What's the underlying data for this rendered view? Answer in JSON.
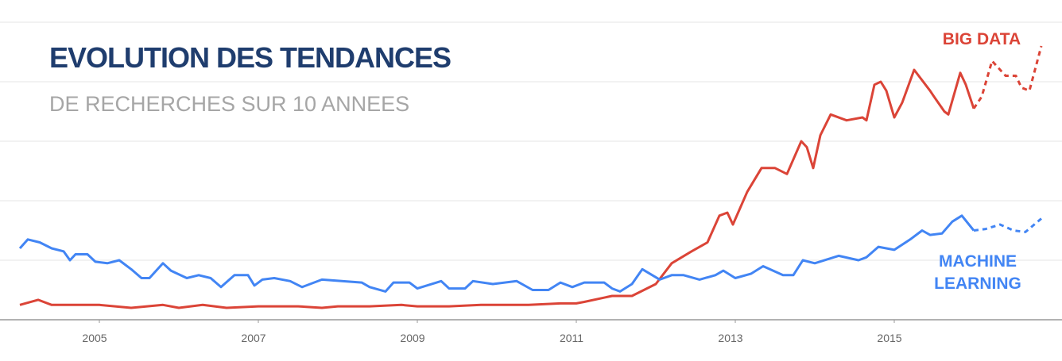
{
  "chart_data": {
    "type": "line",
    "title": "EVOLUTION DES TENDANCES",
    "subtitle": "DE RECHERCHES SUR 10 ANNEES",
    "xlim": [
      2004,
      2016.85
    ],
    "xticks": [
      2005,
      2007,
      2009,
      2011,
      2013,
      2015
    ],
    "ylim": [
      0,
      100
    ],
    "yticks": [
      0,
      20,
      40,
      60,
      80,
      100
    ],
    "grid": true,
    "show_ytick_labels": false,
    "dashed_from": 2016,
    "series": [
      {
        "name": "BIG DATA",
        "color": "#db4437",
        "x": [
          2004,
          2004.23,
          2004.4,
          2004.8,
          2005,
          2005.4,
          2005.8,
          2006,
          2006.3,
          2006.6,
          2007,
          2007.5,
          2007.8,
          2008,
          2008.4,
          2008.8,
          2009,
          2009.4,
          2009.8,
          2010,
          2010.4,
          2010.8,
          2011,
          2011.1,
          2011.45,
          2011.7,
          2012,
          2012.2,
          2012.45,
          2012.65,
          2012.8,
          2012.9,
          2012.97,
          2013.15,
          2013.33,
          2013.5,
          2013.65,
          2013.83,
          2013.9,
          2013.98,
          2014.07,
          2014.2,
          2014.4,
          2014.6,
          2014.65,
          2014.75,
          2014.83,
          2014.9,
          2015,
          2015.1,
          2015.25,
          2015.45,
          2015.5,
          2015.63,
          2015.68,
          2015.83,
          2015.9,
          2016,
          2016.1,
          2016.23,
          2016.4,
          2016.53,
          2016.6,
          2016.7,
          2016.85
        ],
        "values": [
          5,
          6.7,
          5,
          5,
          5,
          4,
          5,
          4,
          5,
          4,
          4.5,
          4.5,
          4,
          4.5,
          4.5,
          5,
          4.5,
          4.5,
          5,
          5,
          5,
          5.5,
          5.5,
          6,
          8,
          8,
          12,
          19,
          23,
          26,
          35,
          36,
          32,
          43,
          51,
          51,
          49,
          60,
          58,
          51,
          62,
          69,
          67,
          68,
          67,
          79,
          80,
          77,
          68,
          73,
          84,
          77,
          75,
          70,
          69,
          83,
          79,
          71,
          75,
          87,
          82,
          82,
          78,
          77,
          92
        ]
      },
      {
        "name": "MACHINE LEARNING",
        "color": "#4285f4",
        "x": [
          2004,
          2004.1,
          2004.25,
          2004.4,
          2004.55,
          2004.63,
          2004.7,
          2004.85,
          2004.95,
          2005.1,
          2005.25,
          2005.4,
          2005.53,
          2005.63,
          2005.8,
          2005.9,
          2006.1,
          2006.25,
          2006.4,
          2006.53,
          2006.7,
          2006.87,
          2006.95,
          2007.05,
          2007.2,
          2007.4,
          2007.55,
          2007.8,
          2008.05,
          2008.3,
          2008.4,
          2008.6,
          2008.7,
          2008.9,
          2009,
          2009.3,
          2009.4,
          2009.6,
          2009.7,
          2009.95,
          2010.25,
          2010.45,
          2010.65,
          2010.8,
          2010.95,
          2011.1,
          2011.35,
          2011.45,
          2011.55,
          2011.7,
          2011.83,
          2012.05,
          2012.2,
          2012.35,
          2012.55,
          2012.75,
          2012.85,
          2013,
          2013.2,
          2013.35,
          2013.6,
          2013.73,
          2013.85,
          2014,
          2014.3,
          2014.55,
          2014.65,
          2014.8,
          2015,
          2015.2,
          2015.35,
          2015.45,
          2015.6,
          2015.73,
          2015.85,
          2016,
          2016.15,
          2016.33,
          2016.5,
          2016.65,
          2016.85
        ],
        "values": [
          24,
          27,
          26,
          24,
          23,
          20,
          22,
          22,
          19.5,
          19,
          20,
          17,
          14,
          14,
          19,
          16.5,
          14,
          15,
          14,
          11,
          15,
          15,
          11.5,
          13.5,
          14,
          13,
          11,
          13.5,
          13,
          12.5,
          11,
          9.5,
          12.5,
          12.5,
          10.5,
          13,
          10.5,
          10.5,
          13,
          12,
          13,
          10,
          10,
          12.5,
          11,
          12.5,
          12.5,
          10.5,
          9.5,
          12,
          17,
          13.5,
          15,
          15,
          13.5,
          15,
          16.5,
          14,
          15.5,
          18,
          15,
          15,
          20,
          19,
          21.5,
          20,
          21,
          24.5,
          23.5,
          27,
          30,
          28.5,
          29,
          33,
          35,
          30,
          30.5,
          32,
          30,
          29.5,
          34
        ]
      }
    ]
  }
}
